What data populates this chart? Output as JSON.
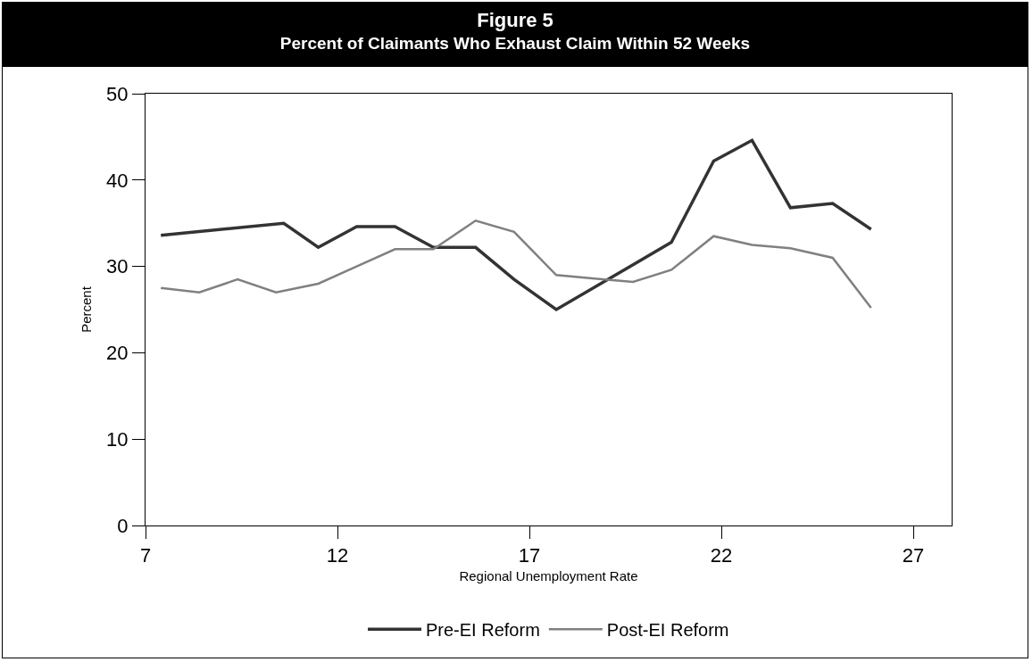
{
  "chart_data": {
    "type": "line",
    "title": "Figure 5",
    "subtitle": "Percent of Claimants Who Exhaust Claim Within 52 Weeks",
    "xlabel": "Regional Unemployment Rate",
    "ylabel": "Percent",
    "series": [
      {
        "name": "Pre-EI Reform",
        "color": "#333333",
        "x": [
          7.4,
          10.6,
          11.5,
          12.5,
          13.5,
          14.5,
          15.6,
          16.6,
          17.7,
          19.7,
          20.7,
          21.8,
          22.8,
          23.8,
          24.9,
          25.9
        ],
        "values": [
          33.6,
          35,
          32.2,
          34.6,
          34.6,
          32.2,
          32.2,
          28.5,
          25,
          30.2,
          32.8,
          42.2,
          44.6,
          36.8,
          37.3,
          34.3
        ]
      },
      {
        "name": "Post-EI Reform",
        "color": "#808080",
        "x": [
          7.4,
          8.4,
          9.4,
          10.4,
          11.5,
          12.5,
          13.5,
          14.5,
          15.6,
          16.6,
          17.7,
          18.7,
          19.7,
          20.7,
          21.8,
          22.8,
          23.8,
          24.9,
          25.9
        ],
        "values": [
          27.5,
          27,
          28.5,
          27,
          28,
          30,
          32,
          32,
          35.3,
          34,
          29,
          28.6,
          28.2,
          29.6,
          33.5,
          32.5,
          32.1,
          31,
          25.2
        ]
      }
    ],
    "xlim": [
      7,
      28
    ],
    "xticks": [
      7,
      12,
      17,
      22,
      27
    ],
    "ylim": [
      0,
      50
    ],
    "yticks": [
      0,
      10,
      20,
      30,
      40,
      50
    ],
    "grid": false,
    "legend": "bottom",
    "marker": "none",
    "line_style": "solid"
  }
}
